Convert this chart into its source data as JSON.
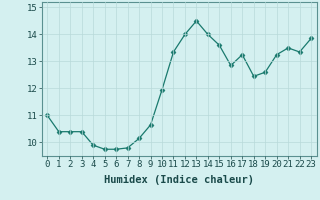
{
  "x": [
    0,
    1,
    2,
    3,
    4,
    5,
    6,
    7,
    8,
    9,
    10,
    11,
    12,
    13,
    14,
    15,
    16,
    17,
    18,
    19,
    20,
    21,
    22,
    23
  ],
  "y": [
    11.0,
    10.4,
    10.4,
    10.4,
    9.9,
    9.75,
    9.75,
    9.8,
    10.15,
    10.65,
    11.95,
    13.35,
    14.0,
    14.5,
    14.0,
    13.6,
    12.85,
    13.25,
    12.45,
    12.6,
    13.25,
    13.5,
    13.35,
    13.85
  ],
  "line_color": "#1a7a6e",
  "marker": "D",
  "marker_size": 2.5,
  "bg_color": "#d4f0f0",
  "grid_color": "#b8dada",
  "xlabel": "Humidex (Indice chaleur)",
  "ylim": [
    9.5,
    15.2
  ],
  "xlim": [
    -0.5,
    23.5
  ],
  "yticks": [
    10,
    11,
    12,
    13,
    14,
    15
  ],
  "xtick_labels": [
    "0",
    "1",
    "2",
    "3",
    "4",
    "5",
    "6",
    "7",
    "8",
    "9",
    "10",
    "11",
    "12",
    "13",
    "14",
    "15",
    "16",
    "17",
    "18",
    "19",
    "20",
    "21",
    "22",
    "23"
  ],
  "label_fontsize": 7.5,
  "tick_fontsize": 6.5,
  "spine_color": "#5a9090"
}
